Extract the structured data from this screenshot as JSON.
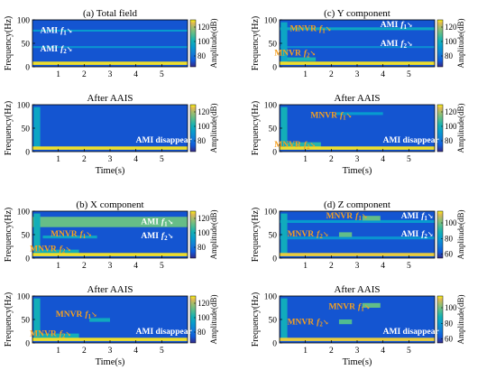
{
  "chart_data": [
    {
      "type": "heatmap",
      "title": "(a) Total field",
      "ylabel": "Frequency(Hz)",
      "xlabel": "",
      "xlim": [
        0,
        6
      ],
      "ylim": [
        0,
        100
      ],
      "xticks": [
        1,
        2,
        3,
        4,
        5
      ],
      "yticks": [
        0,
        50,
        100
      ],
      "colorbar": {
        "label": "Amplitude(dB)",
        "ticks": [
          80,
          100,
          120
        ],
        "range": [
          65,
          130
        ]
      },
      "annotations": [
        {
          "text": "AMI",
          "sub": "f",
          "idx": "1",
          "color": "#ffffff",
          "x": 0.3,
          "y": 78
        },
        {
          "text": "AMI",
          "sub": "f",
          "idx": "2",
          "color": "#ffffff",
          "x": 0.3,
          "y": 38
        }
      ],
      "bands": [
        {
          "y": 75,
          "h": 4,
          "x0": 0,
          "x1": 6,
          "v": 92
        },
        {
          "y": 40,
          "h": 4,
          "x0": 0,
          "x1": 6,
          "v": 90
        },
        {
          "y": 4,
          "h": 7,
          "x0": 0,
          "x1": 6,
          "v": 128
        }
      ]
    },
    {
      "type": "heatmap",
      "title": "After AAIS",
      "ylabel": "Frequency(Hz)",
      "xlabel": "Time(s)",
      "xlim": [
        0,
        6
      ],
      "ylim": [
        0,
        100
      ],
      "xticks": [
        1,
        2,
        3,
        4,
        5
      ],
      "yticks": [
        0,
        50,
        100
      ],
      "colorbar": {
        "label": "Amplitude(dB)",
        "ticks": [
          80,
          100,
          120
        ],
        "range": [
          65,
          130
        ]
      },
      "annotations": [
        {
          "text": "AMI  disappear",
          "color": "#ffffff",
          "x": 4.0,
          "y": 25
        }
      ],
      "bands": [
        {
          "y": 5,
          "h": 90,
          "x0": 0.05,
          "x1": 0.3,
          "v": 96
        },
        {
          "y": 4,
          "h": 7,
          "x0": 0,
          "x1": 6,
          "v": 128
        }
      ]
    },
    {
      "type": "heatmap",
      "title": "(b) X component",
      "ylabel": "Frequency(Hz)",
      "xlabel": "",
      "xlim": [
        0,
        6
      ],
      "ylim": [
        0,
        100
      ],
      "xticks": [
        1,
        2,
        3,
        4,
        5
      ],
      "yticks": [
        0,
        50,
        100
      ],
      "colorbar": {
        "label": "Amplitude(dB)",
        "ticks": [
          80,
          100,
          120
        ],
        "range": [
          65,
          130
        ]
      },
      "annotations": [
        {
          "text": "MNVR",
          "sub": "f",
          "idx": "1",
          "color": "#f5a020",
          "x": 0.7,
          "y": 52
        },
        {
          "text": "MNVR",
          "sub": "f",
          "idx": "2",
          "color": "#f5a020",
          "x": -0.1,
          "y": 20
        },
        {
          "text": "AMI",
          "sub": "f",
          "idx": "1",
          "color": "#ffffff",
          "x": 4.2,
          "y": 78
        },
        {
          "text": "AMI",
          "sub": "f",
          "idx": "2",
          "color": "#ffffff",
          "x": 4.2,
          "y": 48
        }
      ],
      "bands": [
        {
          "y": 66,
          "h": 22,
          "x0": 0,
          "x1": 6,
          "v": 112
        },
        {
          "y": 42,
          "h": 6,
          "x0": 0.4,
          "x1": 2.5,
          "v": 96
        },
        {
          "y": 10,
          "h": 8,
          "x0": 0.1,
          "x1": 1.8,
          "v": 100
        },
        {
          "y": 5,
          "h": 90,
          "x0": 0.05,
          "x1": 0.3,
          "v": 100
        },
        {
          "y": 4,
          "h": 7,
          "x0": 0,
          "x1": 6,
          "v": 128
        }
      ]
    },
    {
      "type": "heatmap",
      "title": "After AAIS",
      "ylabel": "Frequency(Hz)",
      "xlabel": "Time(s)",
      "xlim": [
        0,
        6
      ],
      "ylim": [
        0,
        100
      ],
      "xticks": [
        1,
        2,
        3,
        4,
        5
      ],
      "yticks": [
        0,
        50,
        100
      ],
      "colorbar": {
        "label": "Amplitude(dB)",
        "ticks": [
          80,
          100,
          120
        ],
        "range": [
          65,
          130
        ]
      },
      "annotations": [
        {
          "text": "MNVR",
          "sub": "f",
          "idx": "1",
          "color": "#f5a020",
          "x": 0.9,
          "y": 62
        },
        {
          "text": "MNVR",
          "sub": "f",
          "idx": "2",
          "color": "#f5a020",
          "x": -0.1,
          "y": 20
        },
        {
          "text": "AMI  disappear",
          "color": "#ffffff",
          "x": 4.0,
          "y": 25
        }
      ],
      "bands": [
        {
          "y": 45,
          "h": 8,
          "x0": 2.2,
          "x1": 3.0,
          "v": 98
        },
        {
          "y": 10,
          "h": 10,
          "x0": 0.3,
          "x1": 1.8,
          "v": 100
        },
        {
          "y": 5,
          "h": 90,
          "x0": 0.05,
          "x1": 0.3,
          "v": 100
        },
        {
          "y": 4,
          "h": 7,
          "x0": 0,
          "x1": 6,
          "v": 128
        }
      ]
    },
    {
      "type": "heatmap",
      "title": "(c) Y component",
      "ylabel": "Frequency(Hz)",
      "xlabel": "",
      "xlim": [
        0,
        6
      ],
      "ylim": [
        0,
        100
      ],
      "xticks": [
        1,
        2,
        3,
        4,
        5
      ],
      "yticks": [
        0,
        50,
        100
      ],
      "colorbar": {
        "label": "Amplitude(dB)",
        "ticks": [
          80,
          100,
          120
        ],
        "range": [
          65,
          130
        ]
      },
      "annotations": [
        {
          "text": "MNVR",
          "sub": "f",
          "idx": "1",
          "color": "#f5a020",
          "x": 0.4,
          "y": 82
        },
        {
          "text": "AMI",
          "sub": "f",
          "idx": "1",
          "color": "#ffffff",
          "x": 3.9,
          "y": 90
        },
        {
          "text": "AMI",
          "sub": "f",
          "idx": "2",
          "color": "#ffffff",
          "x": 3.9,
          "y": 50
        },
        {
          "text": "MNVR",
          "sub": "f",
          "idx": "2",
          "color": "#f5a020",
          "x": -0.2,
          "y": 30
        }
      ],
      "bands": [
        {
          "y": 78,
          "h": 6,
          "x0": 0,
          "x1": 6,
          "v": 96
        },
        {
          "y": 40,
          "h": 4,
          "x0": 0,
          "x1": 6,
          "v": 88
        },
        {
          "y": 12,
          "h": 8,
          "x0": 0.2,
          "x1": 1.4,
          "v": 102
        },
        {
          "y": 5,
          "h": 90,
          "x0": 0.05,
          "x1": 0.3,
          "v": 96
        },
        {
          "y": 4,
          "h": 7,
          "x0": 0,
          "x1": 6,
          "v": 128
        }
      ]
    },
    {
      "type": "heatmap",
      "title": "After AAIS",
      "ylabel": "Frequency(Hz)",
      "xlabel": "Time(s)",
      "xlim": [
        0,
        6
      ],
      "ylim": [
        0,
        100
      ],
      "xticks": [
        1,
        2,
        3,
        4,
        5
      ],
      "yticks": [
        0,
        50,
        100
      ],
      "colorbar": {
        "label": "Amplitude(dB)",
        "ticks": [
          80,
          100,
          120
        ],
        "range": [
          65,
          130
        ]
      },
      "annotations": [
        {
          "text": "MNVR",
          "sub": "f",
          "idx": "1",
          "color": "#f5a020",
          "x": 1.2,
          "y": 78
        },
        {
          "text": "MNVR",
          "sub": "f",
          "idx": "2",
          "color": "#f5a020",
          "x": -0.2,
          "y": 15
        },
        {
          "text": "AMI  disappear",
          "color": "#ffffff",
          "x": 4.0,
          "y": 25
        }
      ],
      "bands": [
        {
          "y": 78,
          "h": 6,
          "x0": 2.2,
          "x1": 4.0,
          "v": 92
        },
        {
          "y": 10,
          "h": 10,
          "x0": 0.3,
          "x1": 1.6,
          "v": 104
        },
        {
          "y": 5,
          "h": 90,
          "x0": 0.05,
          "x1": 0.3,
          "v": 100
        },
        {
          "y": 4,
          "h": 7,
          "x0": 0,
          "x1": 6,
          "v": 128
        }
      ]
    },
    {
      "type": "heatmap",
      "title": "(d) Z component",
      "ylabel": "Frequency(Hz)",
      "xlabel": "",
      "xlim": [
        0,
        6
      ],
      "ylim": [
        0,
        100
      ],
      "xticks": [
        1,
        2,
        3,
        4,
        5
      ],
      "yticks": [
        0,
        50,
        100
      ],
      "colorbar": {
        "label": "Amplitude(dB)",
        "ticks": [
          60,
          80,
          100
        ],
        "range": [
          55,
          115
        ]
      },
      "annotations": [
        {
          "text": "MNVR",
          "sub": "f",
          "idx": "1",
          "color": "#f5a020",
          "x": 1.8,
          "y": 90
        },
        {
          "text": "AMI",
          "sub": "f",
          "idx": "1",
          "color": "#ffffff",
          "x": 4.7,
          "y": 90
        },
        {
          "text": "MNVR",
          "sub": "f",
          "idx": "2",
          "color": "#f5a020",
          "x": 0.3,
          "y": 52
        },
        {
          "text": "AMI",
          "sub": "f",
          "idx": "2",
          "color": "#ffffff",
          "x": 4.7,
          "y": 52
        }
      ],
      "bands": [
        {
          "y": 75,
          "h": 6,
          "x0": 0,
          "x1": 6,
          "v": 80
        },
        {
          "y": 40,
          "h": 6,
          "x0": 0,
          "x1": 6,
          "v": 78
        },
        {
          "y": 80,
          "h": 10,
          "x0": 3.2,
          "x1": 3.9,
          "v": 98
        },
        {
          "y": 45,
          "h": 10,
          "x0": 2.3,
          "x1": 2.8,
          "v": 98
        },
        {
          "y": 5,
          "h": 90,
          "x0": 0.05,
          "x1": 0.3,
          "v": 86
        },
        {
          "y": 4,
          "h": 7,
          "x0": 0,
          "x1": 6,
          "v": 112
        }
      ]
    },
    {
      "type": "heatmap",
      "title": "After AAIS",
      "ylabel": "Frequency(Hz)",
      "xlabel": "Time(s)",
      "xlim": [
        0,
        6
      ],
      "ylim": [
        0,
        100
      ],
      "xticks": [
        1,
        2,
        3,
        4,
        5
      ],
      "yticks": [
        0,
        50,
        100
      ],
      "colorbar": {
        "label": "Amplitude(dB)",
        "ticks": [
          60,
          80,
          100
        ],
        "range": [
          55,
          115
        ]
      },
      "annotations": [
        {
          "text": "MNVR",
          "sub": "f",
          "idx": "1",
          "color": "#f5a020",
          "x": 1.9,
          "y": 78
        },
        {
          "text": "MNVR",
          "sub": "f",
          "idx": "2",
          "color": "#f5a020",
          "x": 0.3,
          "y": 45
        },
        {
          "text": "AMI  disappear",
          "color": "#ffffff",
          "x": 4.0,
          "y": 25
        }
      ],
      "bands": [
        {
          "y": 75,
          "h": 10,
          "x0": 3.2,
          "x1": 3.9,
          "v": 98
        },
        {
          "y": 40,
          "h": 10,
          "x0": 2.3,
          "x1": 2.8,
          "v": 96
        },
        {
          "y": 5,
          "h": 90,
          "x0": 0.05,
          "x1": 0.3,
          "v": 86
        },
        {
          "y": 4,
          "h": 7,
          "x0": 0,
          "x1": 6,
          "v": 112
        }
      ]
    }
  ]
}
